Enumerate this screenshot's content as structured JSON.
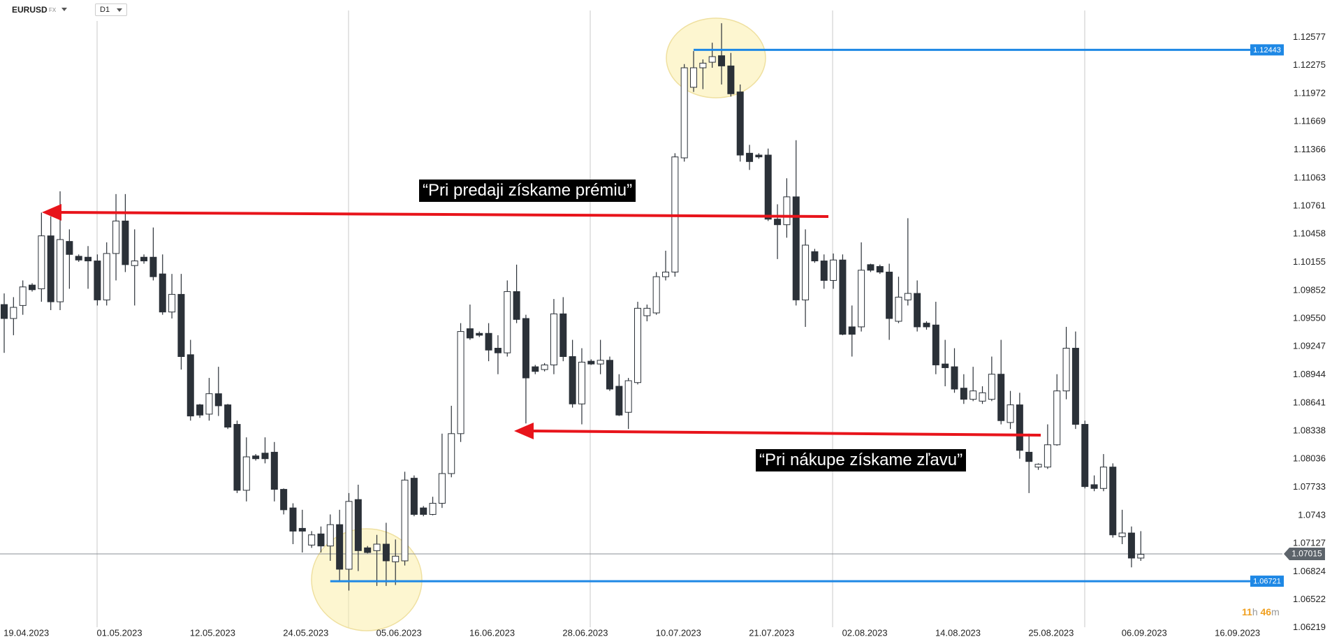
{
  "header": {
    "symbol": "EURUSD",
    "market": "FX",
    "timeframe": "D1"
  },
  "annotations": [
    "“Pri predaji získame prémiu”",
    "“Pri nákupe získame zľavu”"
  ],
  "countdown": {
    "hours": 11,
    "hours_unit": "h",
    "minutes": 46,
    "minutes_unit": "m"
  },
  "chart_data": {
    "type": "candlestick",
    "up_color": "#ffffff",
    "down_color": "#2b3138",
    "outline_color": "#2b3138",
    "open": [
      1.097,
      1.0955,
      1.0969,
      1.0991,
      1.0987,
      1.1044,
      1.0973,
      1.1038,
      1.1022,
      1.1021,
      1.1017,
      1.0975,
      1.1025,
      1.106,
      1.1012,
      1.1021,
      1.1021,
      1.1003,
      1.0962,
      1.0981,
      1.0916,
      1.0862,
      1.0852,
      1.0874,
      1.0862,
      1.0841,
      1.077,
      1.0807,
      1.081,
      1.0811,
      1.0771,
      1.0751,
      1.0729,
      1.0711,
      1.0723,
      1.071,
      1.0733,
      1.0685,
      1.076,
      1.0708,
      1.0705,
      1.0712,
      1.0693,
      1.0694,
      1.0783,
      1.0751,
      1.0744,
      1.0756,
      1.0788,
      1.0831,
      1.0944,
      1.0939,
      1.0939,
      1.0923,
      1.0918,
      1.0984,
      1.0955,
      1.0903,
      1.09,
      1.0905,
      1.096,
      1.0914,
      1.0863,
      1.0909,
      1.0906,
      1.091,
      1.0882,
      1.0854,
      1.0886,
      1.0958,
      1.0961,
      1.1,
      1.1005,
      1.1128,
      1.1204,
      1.1225,
      1.1231,
      1.1238,
      1.1227,
      1.1199,
      1.1133,
      1.1131,
      1.1131,
      1.1062,
      1.1056,
      1.1086,
      1.0975,
      1.1027,
      1.1017,
      1.0996,
      1.1018,
      1.0946,
      1.0946,
      1.1013,
      1.1011,
      1.1005,
      1.0952,
      1.0975,
      1.0982,
      1.095,
      1.0948,
      1.0906,
      1.0903,
      1.088,
      1.0868,
      1.0866,
      1.0868,
      1.0895,
      1.0843,
      1.0862,
      1.0811,
      1.0795,
      1.0795,
      1.0819,
      1.0877,
      1.0923,
      1.0841,
      1.0776,
      1.0772,
      1.0795,
      1.072,
      1.0724,
      1.0697
    ],
    "high": [
      1.0982,
      1.0978,
      1.0996,
      1.0993,
      1.1069,
      1.1065,
      1.1092,
      1.1051,
      1.1024,
      1.1033,
      1.1024,
      1.1037,
      1.1089,
      1.1089,
      1.1051,
      1.1024,
      1.1053,
      1.1024,
      1.1003,
      1.1003,
      1.0932,
      1.0863,
      1.0891,
      1.0903,
      1.0863,
      1.0845,
      1.0827,
      1.0809,
      1.0827,
      1.0822,
      1.0772,
      1.0756,
      1.0749,
      1.0726,
      1.0731,
      1.0744,
      1.0749,
      1.0767,
      1.0776,
      1.071,
      1.0722,
      1.0735,
      1.0717,
      1.079,
      1.0786,
      1.0753,
      1.0763,
      1.0831,
      1.0861,
      1.095,
      1.097,
      1.0941,
      1.095,
      1.0937,
      1.0996,
      1.1013,
      1.0959,
      1.0905,
      1.0907,
      1.0976,
      1.0978,
      1.0932,
      1.0923,
      1.0911,
      1.0932,
      1.0914,
      1.0895,
      1.0891,
      1.0973,
      1.097,
      1.1005,
      1.1028,
      1.1133,
      1.1229,
      1.1243,
      1.1234,
      1.1252,
      1.1273,
      1.1241,
      1.1207,
      1.1142,
      1.1133,
      1.1138,
      1.1078,
      1.1106,
      1.1147,
      1.1051,
      1.103,
      1.1024,
      1.1025,
      1.1024,
      1.0969,
      1.1037,
      1.1014,
      1.1013,
      1.1014,
      1.1,
      1.1063,
      1.0996,
      1.0952,
      1.0973,
      1.0932,
      1.0923,
      1.0895,
      1.0903,
      1.0882,
      1.0914,
      1.0932,
      1.0877,
      1.0875,
      1.0831,
      1.0799,
      1.0841,
      1.0895,
      1.0946,
      1.0941,
      1.0845,
      1.0786,
      1.0809,
      1.0799,
      1.0749,
      1.0731,
      1.0726
    ],
    "low": [
      1.0918,
      1.0937,
      1.0959,
      1.0984,
      1.0973,
      1.0964,
      1.0964,
      1.0987,
      1.1016,
      1.0987,
      1.0969,
      1.0969,
      1.0996,
      1.1005,
      1.0969,
      1.1014,
      1.0996,
      1.0959,
      1.0955,
      1.09,
      1.0845,
      1.0848,
      1.0845,
      1.085,
      1.0836,
      1.0767,
      1.0758,
      1.0802,
      1.0799,
      1.0758,
      1.0744,
      1.0712,
      1.0703,
      1.0708,
      1.0703,
      1.0694,
      1.0671,
      1.0662,
      1.0683,
      1.0702,
      1.0667,
      1.0667,
      1.0668,
      1.0689,
      1.0742,
      1.0742,
      1.0743,
      1.0751,
      1.0784,
      1.0822,
      1.0932,
      1.0935,
      1.0909,
      1.0895,
      1.0914,
      1.095,
      1.0842,
      1.0895,
      1.0898,
      1.0895,
      1.0909,
      1.0859,
      1.0841,
      1.0905,
      1.0895,
      1.0877,
      1.085,
      1.0836,
      1.0884,
      1.0952,
      1.0959,
      1.0996,
      1.1,
      1.1124,
      1.1199,
      1.1202,
      1.1225,
      1.1207,
      1.1194,
      1.1124,
      1.1115,
      1.1127,
      1.106,
      1.1019,
      1.1042,
      1.0969,
      1.0946,
      1.1015,
      1.0987,
      1.0987,
      1.0937,
      1.0914,
      1.0941,
      1.1005,
      1.1003,
      1.0932,
      1.095,
      1.0969,
      1.0941,
      1.0943,
      1.0895,
      1.0882,
      1.0875,
      1.0863,
      1.0866,
      1.0863,
      1.0866,
      1.0841,
      1.0836,
      1.0804,
      1.0767,
      1.0792,
      1.0793,
      1.0818,
      1.0868,
      1.0836,
      1.0772,
      1.0769,
      1.0769,
      1.0719,
      1.0712,
      1.0687,
      1.0694
    ],
    "close": [
      1.0955,
      1.0967,
      1.0989,
      1.0986,
      1.1044,
      1.0973,
      1.104,
      1.1024,
      1.1018,
      1.1017,
      1.0975,
      1.1025,
      1.106,
      1.1013,
      1.1017,
      1.1017,
      1.1,
      1.0962,
      1.0981,
      1.0914,
      1.085,
      1.0851,
      1.0874,
      1.0861,
      1.0838,
      1.077,
      1.0806,
      1.0804,
      1.0804,
      1.0771,
      1.0749,
      1.0726,
      1.0726,
      1.0722,
      1.071,
      1.0733,
      1.0685,
      1.0758,
      1.0705,
      1.0703,
      1.0712,
      1.0694,
      1.0699,
      1.0781,
      1.0744,
      1.0744,
      1.0756,
      1.0788,
      1.0831,
      1.0941,
      1.0934,
      1.0937,
      1.0921,
      1.0918,
      1.0984,
      1.0954,
      1.0891,
      1.0898,
      1.0905,
      1.096,
      1.0914,
      1.0863,
      1.0908,
      1.0906,
      1.091,
      1.0879,
      1.0851,
      1.0888,
      1.0966,
      1.0966,
      1.1,
      1.1005,
      1.1129,
      1.1225,
      1.1225,
      1.123,
      1.1237,
      1.1227,
      1.1197,
      1.1131,
      1.1124,
      1.1129,
      1.1062,
      1.1056,
      1.1086,
      1.0975,
      1.1034,
      1.1017,
      1.0996,
      1.1018,
      1.0938,
      1.0938,
      1.1007,
      1.1007,
      1.1005,
      1.0955,
      1.0978,
      1.0982,
      1.0946,
      1.0946,
      1.0905,
      1.0902,
      1.0879,
      1.0868,
      1.0877,
      1.0875,
      1.0895,
      1.0845,
      1.0862,
      1.0813,
      1.0801,
      1.0798,
      1.0819,
      1.0877,
      1.0923,
      1.0841,
      1.0774,
      1.0772,
      1.0795,
      1.0722,
      1.0724,
      1.0697,
      1.0701
    ],
    "xlim": [
      -0.45,
      137.2
    ],
    "xticks": [
      {
        "value": 2,
        "label": "19.04.2023"
      },
      {
        "value": 12,
        "label": "01.05.2023"
      },
      {
        "value": 22,
        "label": "12.05.2023"
      },
      {
        "value": 32,
        "label": "24.05.2023"
      },
      {
        "value": 42,
        "label": "05.06.2023"
      },
      {
        "value": 52,
        "label": "16.06.2023"
      },
      {
        "value": 62,
        "label": "28.06.2023"
      },
      {
        "value": 72,
        "label": "10.07.2023"
      },
      {
        "value": 82,
        "label": "21.07.2023"
      },
      {
        "value": 92,
        "label": "02.08.2023"
      },
      {
        "value": 102,
        "label": "14.08.2023"
      },
      {
        "value": 112,
        "label": "25.08.2023"
      },
      {
        "value": 122,
        "label": "06.09.2023"
      },
      {
        "value": 132,
        "label": "16.09.2023"
      }
    ],
    "ylim": [
      1.0621,
      1.1298
    ],
    "yticks": [
      1.12577,
      1.12275,
      1.11972,
      1.11669,
      1.11366,
      1.11063,
      1.10761,
      1.10458,
      1.10155,
      1.09852,
      {
        "value": 1.0955,
        "label": "1.09550"
      },
      1.09247,
      1.08944,
      1.08641,
      1.08338,
      1.08036,
      1.07733,
      1.0743,
      1.07127,
      1.06824,
      1.06522,
      1.06219
    ],
    "levels": [
      {
        "value": 1.12443,
        "color": "#1e88e5"
      },
      {
        "value": 1.06721,
        "color": "#1e88e5"
      }
    ],
    "last_price": {
      "value": 1.07015,
      "line_color": "#8a8f94",
      "label_color": "#5d646b"
    }
  }
}
